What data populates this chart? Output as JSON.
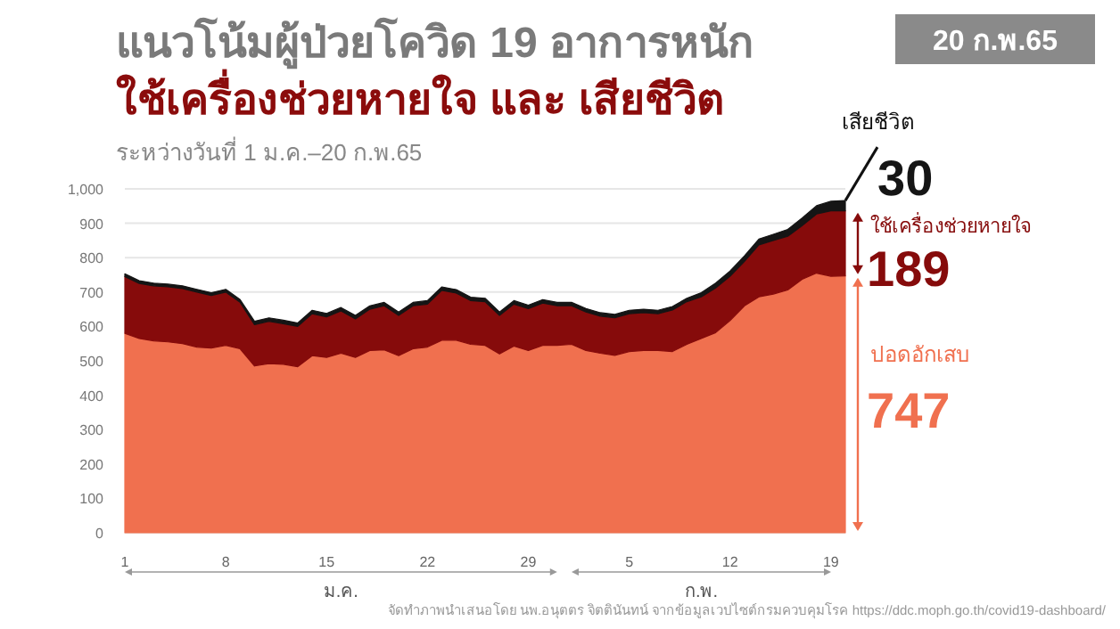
{
  "chart_data": {
    "type": "area",
    "stacked": true,
    "title": "แนวโน้มผู้ป่วยโควิด 19 อาการหนัก\nใช้เครื่องช่วยหายใจ และ เสียชีวิต",
    "subtitle": "ระหว่างวันที่ 1 ม.ค.–20 ก.พ.65",
    "x": [
      "--01-01",
      "--01-02",
      "--01-03",
      "--01-04",
      "--01-05",
      "--01-06",
      "--01-07",
      "--01-08",
      "--01-09",
      "--01-10",
      "--01-11",
      "--01-12",
      "--01-13",
      "--01-14",
      "--01-15",
      "--01-16",
      "--01-17",
      "--01-18",
      "--01-19",
      "--01-20",
      "--01-21",
      "--01-22",
      "--01-23",
      "--01-24",
      "--01-25",
      "--01-26",
      "--01-27",
      "--01-28",
      "--01-29",
      "--01-30",
      "--01-31",
      "--02-01",
      "--02-02",
      "--02-03",
      "--02-04",
      "--02-05",
      "--02-06",
      "--02-07",
      "--02-08",
      "--02-09",
      "--02-10",
      "--02-11",
      "--02-12",
      "--02-13",
      "--02-14",
      "--02-15",
      "--02-16",
      "--02-17",
      "--02-18",
      "--02-19",
      "--02-20"
    ],
    "series": [
      {
        "name": "ปอดอักเสบ",
        "color": "#f0704f",
        "values": [
          580,
          565,
          558,
          555,
          550,
          540,
          537,
          545,
          535,
          485,
          492,
          490,
          483,
          515,
          510,
          522,
          510,
          530,
          532,
          515,
          535,
          540,
          560,
          560,
          548,
          545,
          520,
          543,
          530,
          545,
          545,
          548,
          530,
          522,
          516,
          527,
          530,
          530,
          527,
          548,
          565,
          582,
          617,
          660,
          686,
          694,
          706,
          737,
          755,
          746,
          747
        ],
        "value_labels": [
          null,
          null,
          null,
          null,
          null,
          null,
          null,
          null,
          null,
          null,
          null,
          null,
          null,
          null,
          null,
          null,
          null,
          null,
          null,
          null,
          null,
          null,
          null,
          null,
          null,
          null,
          null,
          null,
          null,
          null,
          null,
          null,
          null,
          null,
          null,
          null,
          null,
          null,
          null,
          null,
          null,
          null,
          null,
          null,
          null,
          null,
          null,
          null,
          null,
          null,
          "747"
        ]
      },
      {
        "name": "ใช้เครื่องช่วยหายใจ",
        "color": "#860b0b",
        "values": [
          165,
          160,
          160,
          160,
          160,
          160,
          153,
          155,
          135,
          120,
          123,
          118,
          117,
          122,
          118,
          123,
          112,
          120,
          128,
          117,
          125,
          125,
          145,
          137,
          127,
          127,
          112,
          122,
          122,
          123,
          115,
          112,
          112,
          108,
          109,
          110,
          110,
          107,
          121,
          124,
          121,
          130,
          129,
          129,
          151,
          156,
          156,
          156,
          172,
          190,
          189
        ],
        "value_labels": [
          null,
          null,
          null,
          null,
          null,
          null,
          null,
          null,
          null,
          null,
          null,
          null,
          null,
          null,
          null,
          null,
          null,
          null,
          null,
          null,
          null,
          null,
          null,
          null,
          null,
          null,
          null,
          null,
          null,
          null,
          null,
          null,
          null,
          null,
          null,
          null,
          null,
          null,
          null,
          null,
          null,
          null,
          null,
          null,
          null,
          null,
          null,
          null,
          null,
          null,
          "189"
        ]
      },
      {
        "name": "เสียชีวิต",
        "color": "#151515",
        "values": [
          8,
          8,
          8,
          8,
          8,
          8,
          8,
          8,
          8,
          10,
          10,
          10,
          10,
          10,
          10,
          10,
          10,
          10,
          10,
          10,
          10,
          10,
          10,
          10,
          10,
          10,
          10,
          10,
          10,
          10,
          10,
          10,
          10,
          10,
          10,
          10,
          10,
          10,
          10,
          10,
          12,
          14,
          15,
          16,
          17,
          18,
          20,
          22,
          24,
          28,
          30
        ],
        "value_labels": [
          null,
          null,
          null,
          null,
          null,
          null,
          null,
          null,
          null,
          null,
          null,
          null,
          null,
          null,
          null,
          null,
          null,
          null,
          null,
          null,
          null,
          null,
          null,
          null,
          null,
          null,
          null,
          null,
          null,
          null,
          null,
          null,
          null,
          null,
          null,
          null,
          null,
          null,
          null,
          null,
          null,
          null,
          null,
          null,
          null,
          null,
          null,
          null,
          null,
          null,
          "30"
        ]
      }
    ],
    "xlim": [
      "--01-01",
      "--02-20"
    ],
    "xticks": [
      {
        "value": "--01-01",
        "label": "1"
      },
      {
        "value": "--01-08",
        "label": "8"
      },
      {
        "value": "--01-15",
        "label": "15"
      },
      {
        "value": "--01-22",
        "label": "22"
      },
      {
        "value": "--01-29",
        "label": "29"
      },
      {
        "value": "--02-05",
        "label": "5"
      },
      {
        "value": "--02-12",
        "label": "12"
      },
      {
        "value": "--02-19",
        "label": "19"
      }
    ],
    "ylim": [
      0,
      1000
    ],
    "yticks": [
      0,
      100,
      200,
      300,
      400,
      500,
      600,
      700,
      800,
      900,
      {
        "value": 1000,
        "label": "1,000"
      }
    ],
    "grid": "y",
    "annotations": [
      "20 ก.พ.65",
      "ม.ค.",
      "ก.พ.",
      "จัดทำภาพนำเสนอโดย นพ.อนุตตร จิตตินันทน์ จากข้อมูลเวปไซต์กรมควบคุมโรค https://ddc.moph.go.th/covid19-dashboard/"
    ]
  }
}
